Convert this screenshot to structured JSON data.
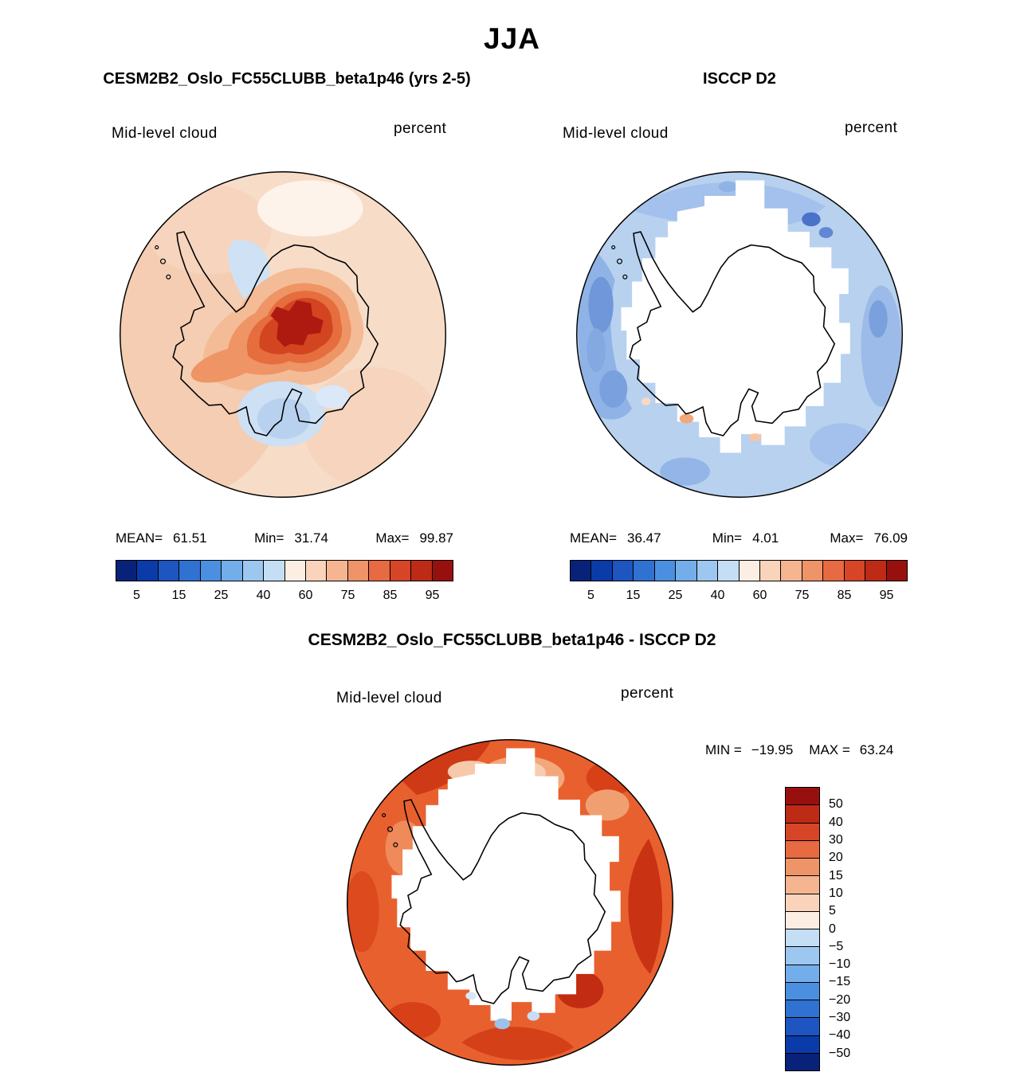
{
  "page": {
    "title": "JJA"
  },
  "panels": {
    "model": {
      "title": "CESM2B2_Oslo_FC55CLUBB_beta1p46 (yrs 2-5)",
      "variable": "Mid-level cloud",
      "units": "percent",
      "stats": {
        "mean_label": "MEAN=",
        "mean": "61.51",
        "min_label": "Min=",
        "min": "31.74",
        "max_label": "Max=",
        "max": "99.87"
      }
    },
    "obs": {
      "title": "ISCCP D2",
      "variable": "Mid-level cloud",
      "units": "percent",
      "stats": {
        "mean_label": "MEAN=",
        "mean": "36.47",
        "min_label": "Min=",
        "min": "4.01",
        "max_label": "Max=",
        "max": "76.09"
      }
    },
    "diff": {
      "title": "CESM2B2_Oslo_FC55CLUBB_beta1p46 - ISCCP D2",
      "variable": "Mid-level cloud",
      "units": "percent",
      "stats": {
        "min_label": "MIN =",
        "min": "−19.95",
        "max_label": "MAX =",
        "max": "63.24"
      }
    }
  },
  "colorbar_h": {
    "colors": [
      "#08227a",
      "#0a3ba8",
      "#1e55c0",
      "#2f72d2",
      "#4b90e0",
      "#74aeea",
      "#9cc7f0",
      "#c3def5",
      "#fceee2",
      "#f9d4ba",
      "#f5b591",
      "#ef9368",
      "#e76a42",
      "#d74527",
      "#bd2a16",
      "#98100e"
    ],
    "tick_labels": [
      "5",
      "15",
      "25",
      "40",
      "60",
      "75",
      "85",
      "95"
    ],
    "tick_positions": [
      1,
      3,
      5,
      7,
      9,
      11,
      13,
      15
    ]
  },
  "colorbar_v": {
    "colors": [
      "#98100e",
      "#bd2a16",
      "#d74527",
      "#e76a42",
      "#ef9368",
      "#f5b591",
      "#f9d4ba",
      "#fceee2",
      "#c3def5",
      "#9cc7f0",
      "#74aeea",
      "#4b90e0",
      "#2f72d2",
      "#1e55c0",
      "#0a3ba8",
      "#08227a"
    ],
    "tick_labels": [
      "50",
      "40",
      "30",
      "20",
      "15",
      "10",
      "5",
      "0",
      "−5",
      "−10",
      "−15",
      "−20",
      "−30",
      "−40",
      "−50"
    ]
  },
  "chart_data": [
    {
      "type": "heatmap",
      "subtype": "south-polar-stereographic-filled-contour-map",
      "season": "JJA",
      "title": "CESM2B2_Oslo_FC55CLUBB_beta1p46 (yrs 2-5)",
      "variable": "Mid-level cloud",
      "units": "percent",
      "region": "Antarctic",
      "stats": {
        "mean": 61.51,
        "min": 31.74,
        "max": 99.87
      },
      "contour_levels": [
        5,
        10,
        15,
        20,
        25,
        30,
        40,
        50,
        60,
        70,
        75,
        80,
        85,
        90,
        95
      ],
      "colorbar_tick_labels": [
        5,
        15,
        25,
        40,
        60,
        75,
        85,
        95
      ],
      "legend_position": "bottom"
    },
    {
      "type": "heatmap",
      "subtype": "south-polar-stereographic-filled-contour-map",
      "season": "JJA",
      "title": "ISCCP D2",
      "variable": "Mid-level cloud",
      "units": "percent",
      "region": "Antarctic",
      "stats": {
        "mean": 36.47,
        "min": 4.01,
        "max": 76.09
      },
      "contour_levels": [
        5,
        10,
        15,
        20,
        25,
        30,
        40,
        50,
        60,
        70,
        75,
        80,
        85,
        90,
        95
      ],
      "colorbar_tick_labels": [
        5,
        15,
        25,
        40,
        60,
        75,
        85,
        95
      ],
      "legend_position": "bottom",
      "notes": "missing data over Antarctic continent shown as white blocky region"
    },
    {
      "type": "heatmap",
      "subtype": "south-polar-stereographic-filled-contour-map",
      "season": "JJA",
      "title": "CESM2B2_Oslo_FC55CLUBB_beta1p46 - ISCCP D2",
      "variable": "Mid-level cloud",
      "units": "percent",
      "region": "Antarctic",
      "stats": {
        "min": -19.95,
        "max": 63.24
      },
      "contour_levels": [
        -50,
        -40,
        -30,
        -20,
        -15,
        -10,
        -5,
        0,
        5,
        10,
        15,
        20,
        30,
        40,
        50
      ],
      "colorbar_tick_labels": [
        50,
        40,
        30,
        20,
        15,
        10,
        5,
        0,
        -5,
        -10,
        -15,
        -20,
        -30,
        -40,
        -50
      ],
      "legend_position": "right",
      "notes": "missing data over Antarctic continent shown as white blocky region"
    }
  ]
}
